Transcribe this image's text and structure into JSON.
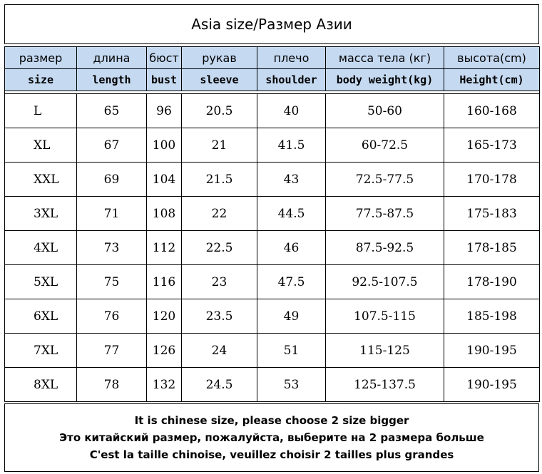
{
  "title": "Asia size/Размер Азии",
  "headers_ru": [
    "размер",
    "длина",
    "бюст",
    "рукав",
    "плечо",
    "масса тела (кг)",
    "высота(cm)"
  ],
  "headers_en": [
    "size",
    "length",
    "bust",
    "sleeve",
    "shoulder",
    "body weight(kg)",
    "Height(cm)"
  ],
  "rows": [
    [
      "L",
      "65",
      "96",
      "20.5",
      "40",
      "50-60",
      "160-168"
    ],
    [
      "XL",
      "67",
      "100",
      "21",
      "41.5",
      "60-72.5",
      "165-173"
    ],
    [
      "XXL",
      "69",
      "104",
      "21.5",
      "43",
      "72.5-77.5",
      "170-178"
    ],
    [
      "3XL",
      "71",
      "108",
      "22",
      "44.5",
      "77.5-87.5",
      "175-183"
    ],
    [
      "4XL",
      "73",
      "112",
      "22.5",
      "46",
      "87.5-92.5",
      "178-185"
    ],
    [
      "5XL",
      "75",
      "116",
      "23",
      "47.5",
      "92.5-107.5",
      "178-190"
    ],
    [
      "6XL",
      "76",
      "120",
      "23.5",
      "49",
      "107.5-115",
      "185-198"
    ],
    [
      "7XL",
      "77",
      "126",
      "24",
      "51",
      "115-125",
      "190-195"
    ],
    [
      "8XL",
      "78",
      "132",
      "24.5",
      "53",
      "125-137.5",
      "190-195"
    ]
  ],
  "notes": [
    "It is chinese size, please choose 2 size bigger",
    "Это китайский размер, пожалуйста, выберите на 2 размера больше",
    "C'est la taille chinoise, veuillez choisir 2 tailles plus grandes"
  ]
}
